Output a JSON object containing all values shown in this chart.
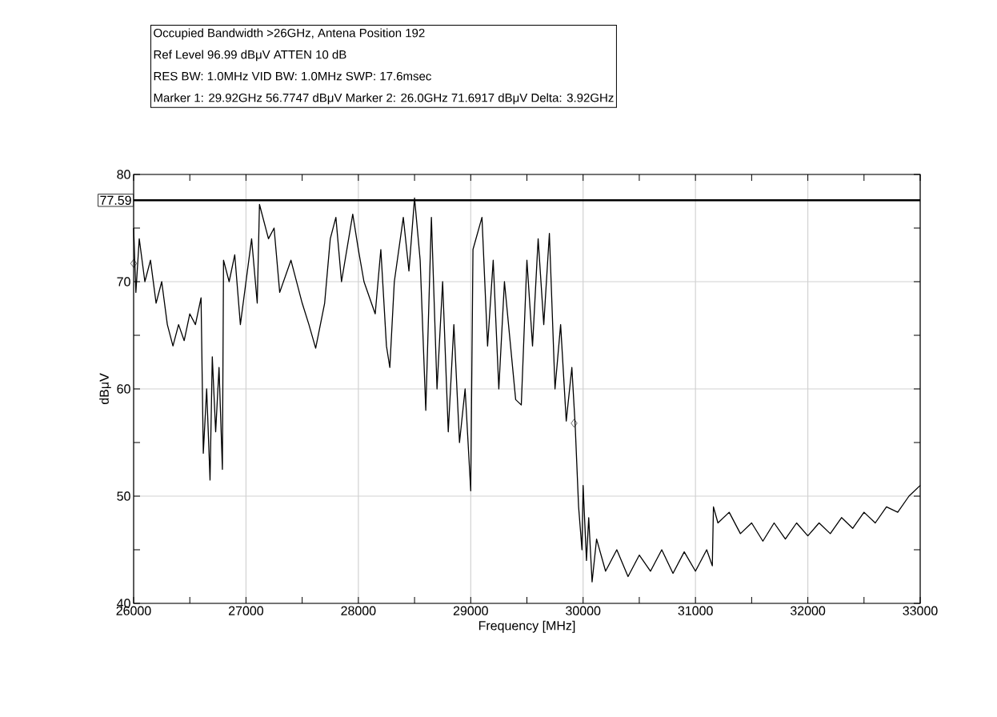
{
  "chart_data": {
    "type": "line",
    "title": "Occupied Bandwidth >26GHz, Antena Position 192",
    "annotations": [
      "Ref Level 96.99 dBμV    ATTEN 10 dB",
      "RES BW: 1.0MHz  VID BW: 1.0MHz  SWP: 17.6msec",
      "Marker 1: 29.92GHz  56.7747 dBμV    Marker 2: 26.0GHz  71.6917 dBμV Delta: 3.92GHz"
    ],
    "xlabel": "Frequency [MHz]",
    "ylabel": "dBμV",
    "xlim": [
      26000,
      33000
    ],
    "ylim": [
      40,
      80
    ],
    "xticks": [
      26000,
      27000,
      28000,
      29000,
      30000,
      31000,
      32000,
      33000
    ],
    "yticks": [
      40,
      50,
      60,
      70,
      80
    ],
    "grid": true,
    "ref_lines": [
      {
        "axis": "y",
        "value": 77.59,
        "label": "77.59",
        "color": "#000000"
      }
    ],
    "series": [
      {
        "color": "#000000",
        "x": [
          26000,
          26020,
          26050,
          26100,
          26150,
          26200,
          26250,
          26300,
          26350,
          26400,
          26450,
          26500,
          26550,
          26600,
          26620,
          26650,
          26680,
          26700,
          26730,
          26760,
          26790,
          26800,
          26850,
          26900,
          26950,
          27000,
          27050,
          27100,
          27120,
          27200,
          27250,
          27300,
          27400,
          27500,
          27560,
          27620,
          27700,
          27750,
          27800,
          27850,
          27950,
          28000,
          28050,
          28150,
          28200,
          28250,
          28280,
          28320,
          28400,
          28450,
          28500,
          28550,
          28600,
          28650,
          28700,
          28750,
          28800,
          28850,
          28900,
          28950,
          29000,
          29020,
          29100,
          29150,
          29200,
          29250,
          29300,
          29400,
          29450,
          29500,
          29550,
          29600,
          29650,
          29700,
          29750,
          29800,
          29850,
          29900,
          29930,
          29960,
          29990,
          30000,
          30030,
          30050,
          30080,
          30120,
          30200,
          30300,
          30400,
          30500,
          30600,
          30700,
          30800,
          30900,
          31000,
          31100,
          31150,
          31160,
          31200,
          31300,
          31400,
          31500,
          31600,
          31700,
          31800,
          31900,
          32000,
          32100,
          32200,
          32300,
          32400,
          32500,
          32600,
          32700,
          32800,
          32900,
          33000
        ],
        "values": [
          75,
          69,
          74,
          70,
          72,
          68,
          70,
          66,
          64,
          66,
          64.5,
          67,
          66,
          68.5,
          54,
          60,
          51.5,
          63,
          56,
          62,
          52.5,
          72,
          70,
          72.5,
          66,
          70,
          74,
          68,
          77.2,
          74,
          75,
          69,
          72,
          68,
          66,
          63.8,
          68,
          74,
          76,
          70,
          76.3,
          73,
          70,
          67,
          73,
          64,
          62,
          70,
          76,
          71,
          77.8,
          72,
          58,
          76,
          60,
          70,
          56,
          66,
          55,
          60,
          50.5,
          73,
          76,
          64,
          72,
          60,
          70,
          59,
          58.5,
          72,
          64,
          74,
          66,
          74.5,
          60,
          66,
          57,
          62,
          56.5,
          49,
          45,
          51,
          44,
          48,
          42,
          46,
          43,
          45,
          42.5,
          44.5,
          43,
          45,
          42.8,
          44.8,
          43,
          45,
          43.5,
          49,
          47.5,
          48.5,
          46.5,
          47.5,
          45.8,
          47.5,
          46,
          47.5,
          46.3,
          47.5,
          46.5,
          48,
          47,
          48.5,
          47.5,
          49,
          48.5,
          50,
          51
        ]
      },
      {
        "type": "scatter",
        "marker": "diamond",
        "color": "#000000",
        "x": [
          26000,
          29920
        ],
        "values": [
          71.7,
          56.8
        ]
      }
    ]
  }
}
